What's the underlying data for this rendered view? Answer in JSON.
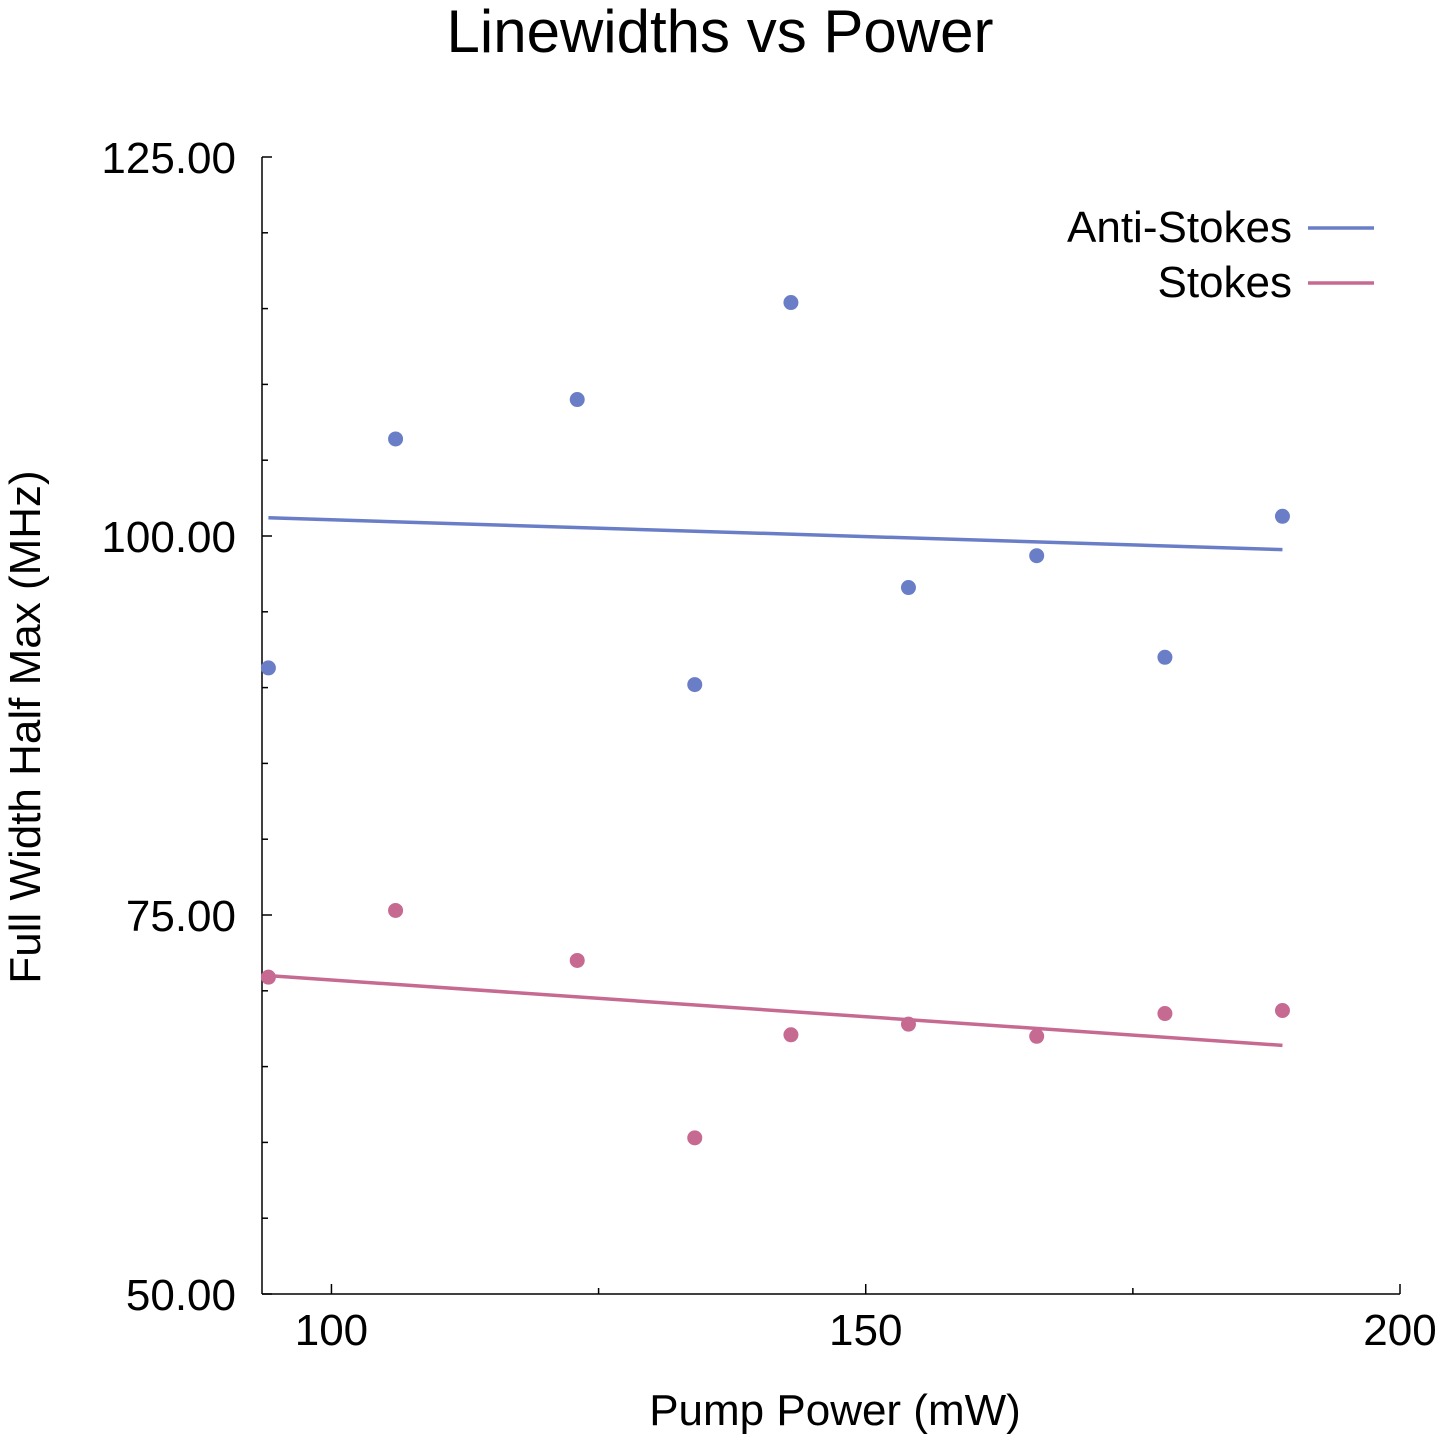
{
  "chart_data": {
    "type": "scatter",
    "title": "Linewidths vs Power",
    "xlabel": "Pump Power (mW)",
    "ylabel": "Full Width Half Max (MHz)",
    "xlim": [
      93.5,
      200
    ],
    "ylim": [
      50,
      125
    ],
    "xticks": [
      {
        "value": 100,
        "label": "100"
      },
      {
        "value": 150,
        "label": "150"
      },
      {
        "value": 200,
        "label": "200"
      }
    ],
    "xminor": [
      125,
      175
    ],
    "yticks": [
      {
        "value": 50,
        "label": "50.00"
      },
      {
        "value": 75,
        "label": "75.00"
      },
      {
        "value": 100,
        "label": "100.00"
      },
      {
        "value": 125,
        "label": "125.00"
      }
    ],
    "yminor": [
      55,
      60,
      65,
      70,
      80,
      85,
      90,
      95,
      105,
      110,
      115,
      120
    ],
    "legend_position": "top-right",
    "grid": false,
    "series": [
      {
        "name": "Anti-Stokes",
        "color": "#6a7ec8",
        "points": [
          [
            94.1,
            91.3
          ],
          [
            106,
            106.4
          ],
          [
            123,
            109.0
          ],
          [
            134,
            90.2
          ],
          [
            143,
            115.4
          ],
          [
            154,
            96.6
          ],
          [
            166,
            98.7
          ],
          [
            178,
            92.0
          ],
          [
            189,
            101.3
          ]
        ],
        "fit": [
          [
            94.1,
            101.2
          ],
          [
            189,
            99.1
          ]
        ]
      },
      {
        "name": "Stokes",
        "color": "#c66a92",
        "points": [
          [
            94.1,
            70.9
          ],
          [
            106,
            75.3
          ],
          [
            123,
            72.0
          ],
          [
            134,
            60.3
          ],
          [
            143,
            67.1
          ],
          [
            154,
            67.8
          ],
          [
            166,
            67.0
          ],
          [
            178,
            68.5
          ],
          [
            189,
            68.7
          ]
        ],
        "fit": [
          [
            94.1,
            71.0
          ],
          [
            189,
            66.4
          ]
        ]
      }
    ]
  }
}
